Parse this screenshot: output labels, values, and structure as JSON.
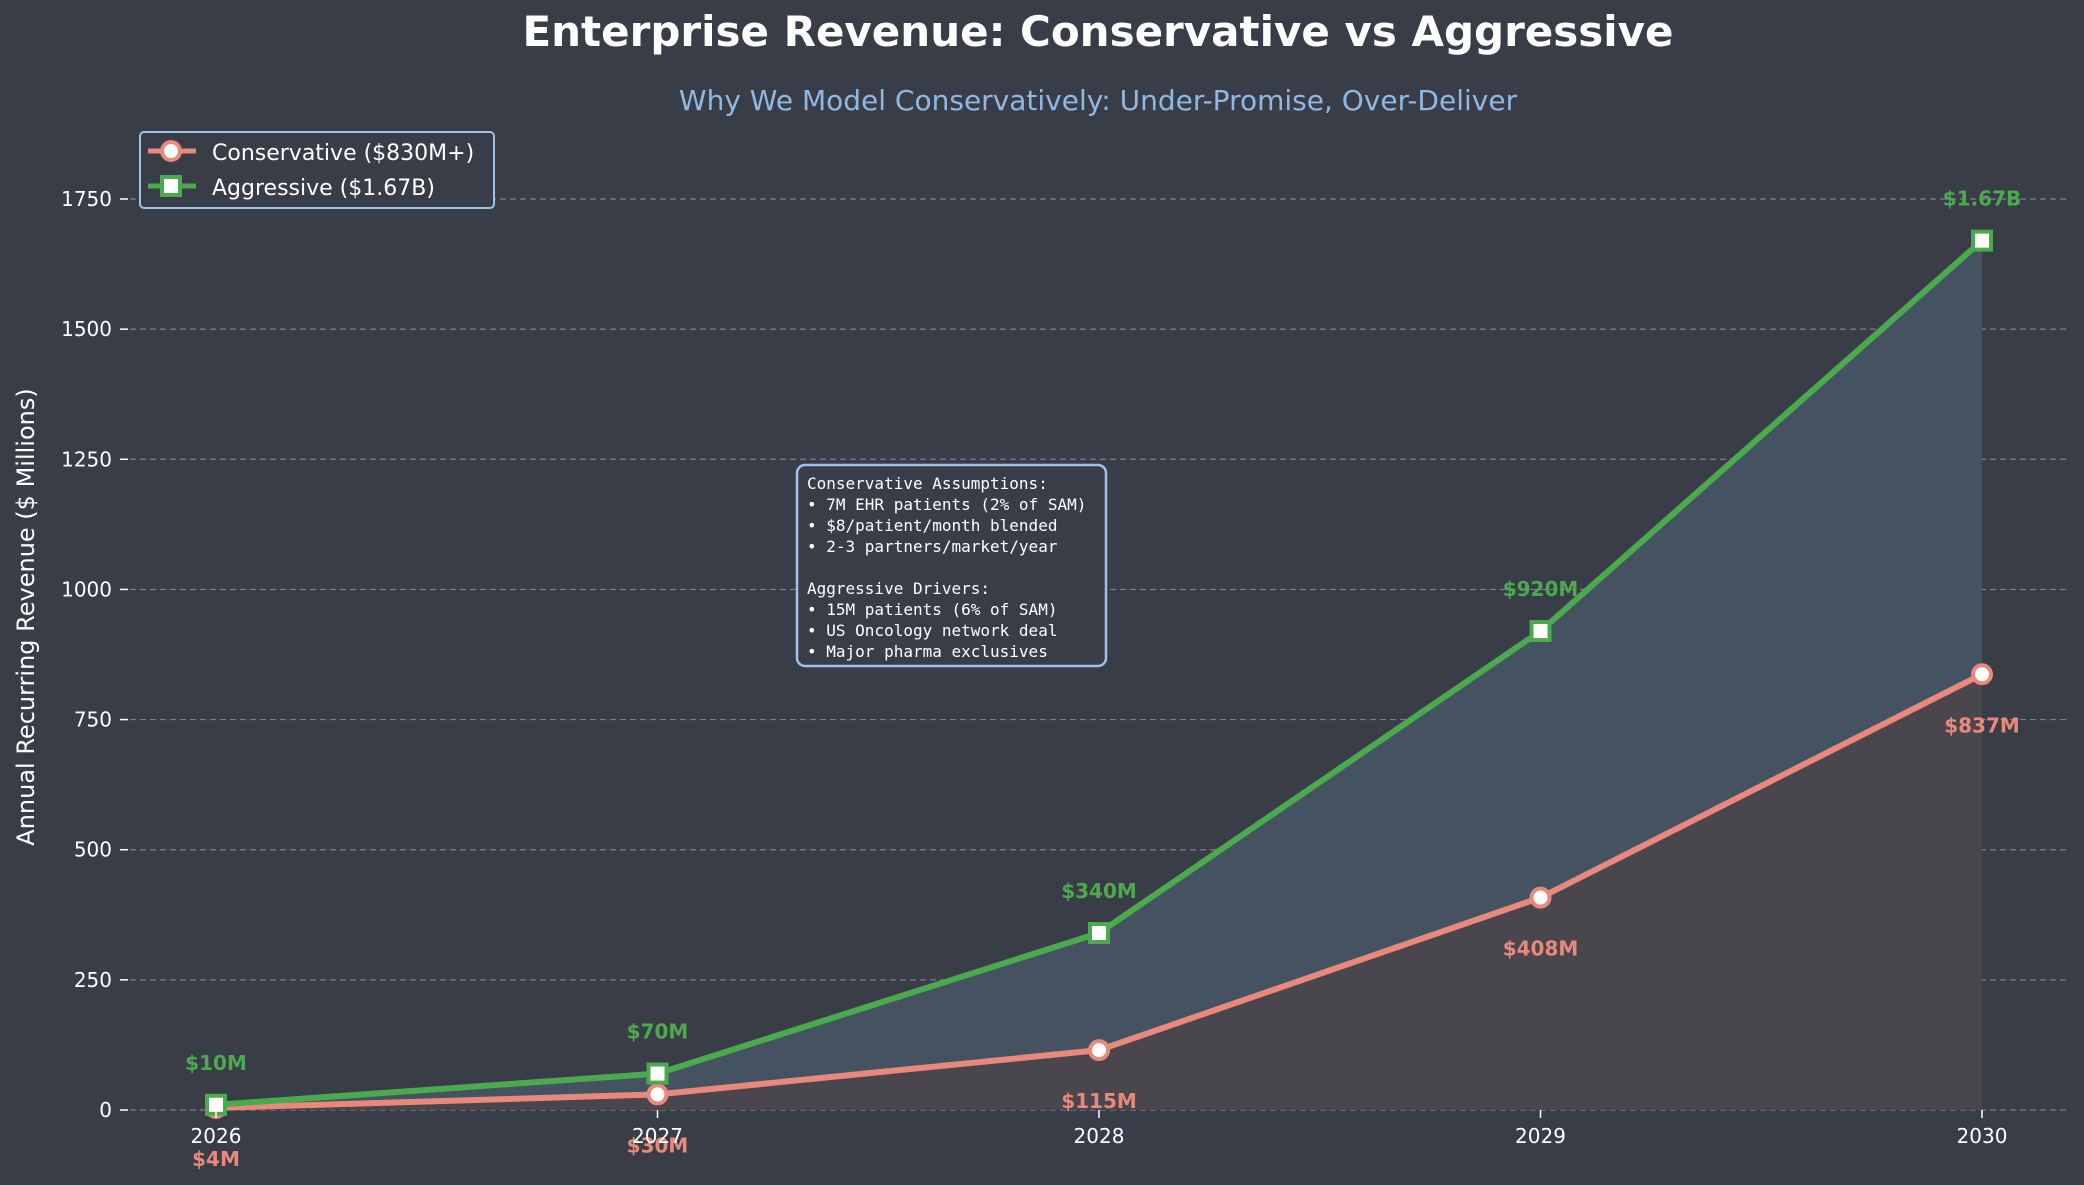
{
  "colors": {
    "background": "#393d47",
    "conservative": "#e8897b",
    "aggressive": "#4caa4e",
    "conservative_fill": "#4a474e",
    "aggressive_fill": "#465363",
    "subtitle": "#8fb9e3",
    "legend_border": "#9cc3ea",
    "text": "#ffffff",
    "grid": "#8a8f99"
  },
  "chart_data": {
    "type": "line",
    "title": "Enterprise Revenue: Conservative vs Aggressive",
    "subtitle": "Why We Model Conservatively: Under-Promise, Over-Deliver",
    "xlabel": "",
    "ylabel": "Annual Recurring Revenue ($ Millions)",
    "x": [
      2026,
      2027,
      2028,
      2029,
      2030
    ],
    "x_tick_labels": [
      "2026",
      "2027",
      "2028",
      "2029",
      "2030"
    ],
    "yticks": [
      0,
      250,
      500,
      750,
      1000,
      1250,
      1500,
      1750
    ],
    "ytick_labels": [
      "0",
      "250",
      "500",
      "750",
      "1000",
      "1250",
      "1500",
      "1750"
    ],
    "ylim": [
      0,
      1750
    ],
    "grid": true,
    "grid_axis": "y",
    "legend_position": "top-left",
    "series": [
      {
        "name": "Conservative ($830M+)",
        "marker": "circle",
        "values": [
          4,
          30,
          115,
          408,
          837
        ],
        "data_labels": [
          "$4M",
          "$30M",
          "$115M",
          "$408M",
          "$837M"
        ],
        "label_position": "below"
      },
      {
        "name": "Aggressive ($1.67B)",
        "marker": "square",
        "values": [
          10,
          70,
          340,
          920,
          1670
        ],
        "data_labels": [
          "$10M",
          "$70M",
          "$340M",
          "$920M",
          "$1.67B"
        ],
        "label_position": "above"
      }
    ],
    "annotation": {
      "lines": [
        "Conservative Assumptions:",
        "• 7M EHR patients (2% of SAM)",
        "• $8/patient/month blended",
        "• 2-3 partners/market/year",
        "",
        "Aggressive Drivers:",
        "• 15M patients (6% of SAM)",
        "• US Oncology network deal",
        "• Major pharma exclusives"
      ]
    }
  }
}
